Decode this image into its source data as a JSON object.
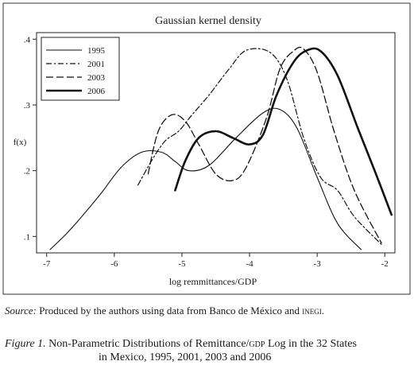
{
  "chart_data": {
    "type": "line",
    "title": "Gaussian kernel density",
    "xlabel": "log remmittances/GDP",
    "ylabel": "f(x)",
    "xlim": [
      -7.15,
      -1.85
    ],
    "ylim": [
      0.075,
      0.41
    ],
    "xticks": [
      -7,
      -6,
      -5,
      -4,
      -3,
      -2
    ],
    "xtick_labels": [
      "-7",
      "-6",
      "-5",
      "-4",
      "-3",
      "-2"
    ],
    "yticks": [
      0.1,
      0.2,
      0.3,
      0.4
    ],
    "ytick_labels": [
      ".1",
      ".2",
      ".3",
      ".4"
    ],
    "grid": false,
    "legend_position": "top-left",
    "series": [
      {
        "name": "1995",
        "style": "solid-thin",
        "x": [
          -6.95,
          -6.7,
          -6.5,
          -6.2,
          -5.9,
          -5.6,
          -5.3,
          -5.1,
          -4.9,
          -4.6,
          -4.2,
          -3.8,
          -3.55,
          -3.3,
          -3.0,
          -2.7,
          -2.35
        ],
        "y": [
          0.08,
          0.105,
          0.128,
          0.165,
          0.205,
          0.228,
          0.228,
          0.214,
          0.2,
          0.208,
          0.25,
          0.288,
          0.293,
          0.265,
          0.19,
          0.12,
          0.08
        ]
      },
      {
        "name": "2001",
        "style": "dash-dot",
        "x": [
          -5.65,
          -5.45,
          -5.25,
          -5.05,
          -4.85,
          -4.6,
          -4.3,
          -4.05,
          -3.7,
          -3.45,
          -3.2,
          -2.95,
          -2.7,
          -2.45,
          -2.05
        ],
        "y": [
          0.178,
          0.215,
          0.245,
          0.26,
          0.285,
          0.315,
          0.355,
          0.383,
          0.38,
          0.34,
          0.25,
          0.19,
          0.17,
          0.13,
          0.088
        ]
      },
      {
        "name": "2003",
        "style": "long-dash",
        "x": [
          -5.5,
          -5.35,
          -5.15,
          -4.95,
          -4.75,
          -4.5,
          -4.25,
          -4.05,
          -3.75,
          -3.55,
          -3.35,
          -3.2,
          -3.0,
          -2.75,
          -2.45,
          -2.05
        ],
        "y": [
          0.195,
          0.26,
          0.285,
          0.275,
          0.24,
          0.195,
          0.185,
          0.205,
          0.28,
          0.355,
          0.382,
          0.385,
          0.35,
          0.26,
          0.17,
          0.09
        ]
      },
      {
        "name": "2006",
        "style": "solid-thick",
        "x": [
          -5.1,
          -4.95,
          -4.75,
          -4.5,
          -4.25,
          -4.0,
          -3.8,
          -3.6,
          -3.35,
          -3.15,
          -2.95,
          -2.7,
          -2.4,
          -2.15,
          -1.9
        ],
        "y": [
          0.17,
          0.215,
          0.25,
          0.26,
          0.25,
          0.24,
          0.255,
          0.315,
          0.365,
          0.383,
          0.382,
          0.345,
          0.265,
          0.2,
          0.133
        ]
      }
    ]
  },
  "caption": {
    "source_label": "Source:",
    "source_text_a": " Produced by the authors using data from Banco de México and ",
    "source_text_b": "inegi",
    "source_text_c": ".",
    "figure_label": "Figure 1.",
    "figure_text_a": " Non-Parametric Distributions of Remittance/",
    "figure_text_b": "gdp",
    "figure_text_c": " Log in the 32 States",
    "figure_text_line2": "in Mexico, 1995, 2001, 2003 and 2006"
  }
}
